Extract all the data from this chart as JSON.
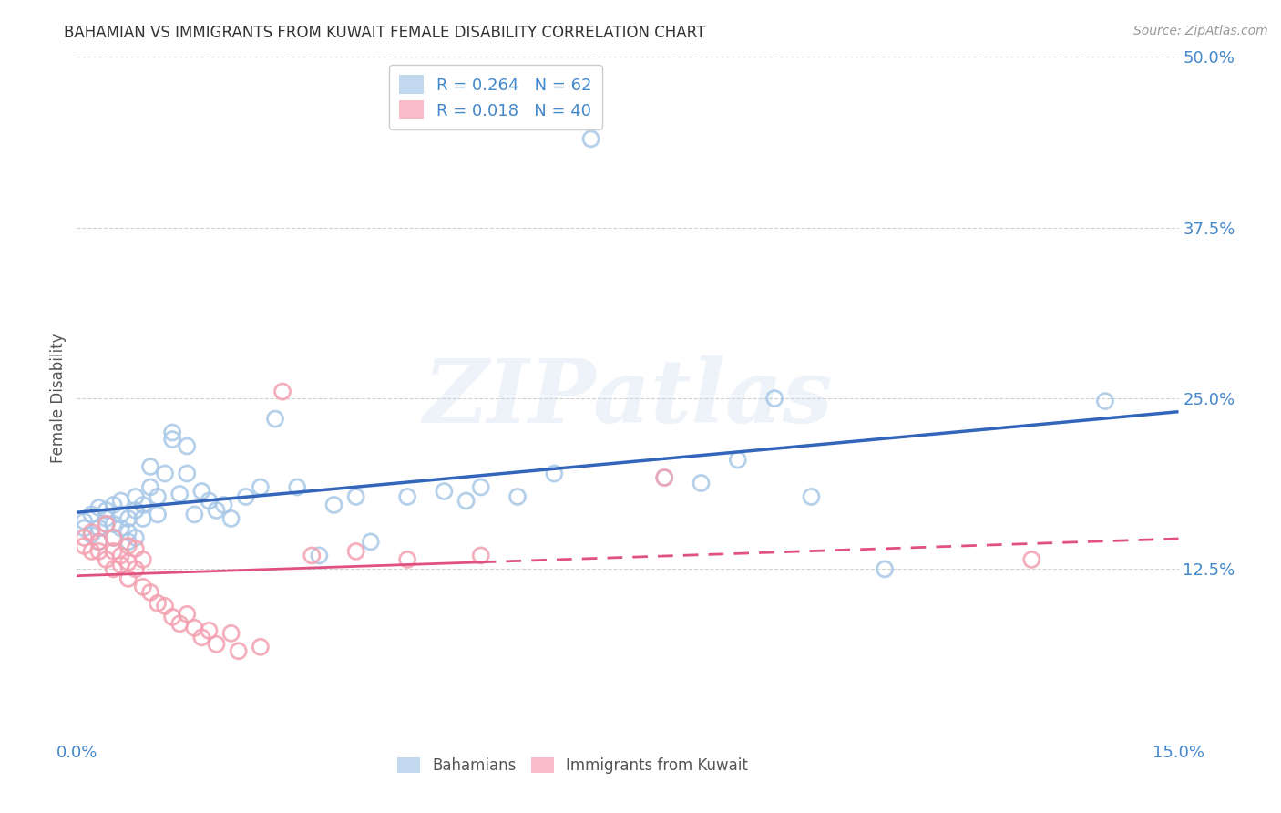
{
  "title": "BAHAMIAN VS IMMIGRANTS FROM KUWAIT FEMALE DISABILITY CORRELATION CHART",
  "source": "Source: ZipAtlas.com",
  "ylabel": "Female Disability",
  "xlim": [
    0.0,
    0.15
  ],
  "ylim": [
    0.0,
    0.5
  ],
  "yticks": [
    0.0,
    0.125,
    0.25,
    0.375,
    0.5
  ],
  "ytick_labels": [
    "",
    "12.5%",
    "25.0%",
    "37.5%",
    "50.0%"
  ],
  "xticks": [
    0.0,
    0.025,
    0.05,
    0.075,
    0.1,
    0.125,
    0.15
  ],
  "xtick_labels": [
    "0.0%",
    "",
    "",
    "",
    "",
    "",
    "15.0%"
  ],
  "blue_color": "#a8c8e8",
  "pink_color": "#f4a0b0",
  "line_blue": "#3366bb",
  "line_pink": "#e05080",
  "tick_color": "#4488cc",
  "grid_color": "#cccccc",
  "watermark": "ZIPatlas",
  "bahamians_x": [
    0.001,
    0.001,
    0.002,
    0.002,
    0.003,
    0.003,
    0.003,
    0.004,
    0.004,
    0.004,
    0.005,
    0.005,
    0.005,
    0.006,
    0.006,
    0.006,
    0.007,
    0.007,
    0.007,
    0.008,
    0.008,
    0.008,
    0.009,
    0.009,
    0.01,
    0.01,
    0.011,
    0.011,
    0.012,
    0.013,
    0.013,
    0.014,
    0.015,
    0.015,
    0.016,
    0.017,
    0.018,
    0.019,
    0.02,
    0.021,
    0.023,
    0.025,
    0.027,
    0.03,
    0.033,
    0.035,
    0.038,
    0.04,
    0.045,
    0.05,
    0.053,
    0.055,
    0.06,
    0.065,
    0.07,
    0.08,
    0.085,
    0.09,
    0.095,
    0.1,
    0.11,
    0.14
  ],
  "bahamians_y": [
    0.16,
    0.155,
    0.165,
    0.15,
    0.155,
    0.17,
    0.145,
    0.158,
    0.168,
    0.162,
    0.158,
    0.172,
    0.148,
    0.165,
    0.155,
    0.175,
    0.162,
    0.152,
    0.145,
    0.178,
    0.168,
    0.148,
    0.172,
    0.162,
    0.2,
    0.185,
    0.178,
    0.165,
    0.195,
    0.22,
    0.225,
    0.18,
    0.195,
    0.215,
    0.165,
    0.182,
    0.175,
    0.168,
    0.172,
    0.162,
    0.178,
    0.185,
    0.235,
    0.185,
    0.135,
    0.172,
    0.178,
    0.145,
    0.178,
    0.182,
    0.175,
    0.185,
    0.178,
    0.195,
    0.44,
    0.192,
    0.188,
    0.205,
    0.25,
    0.178,
    0.125,
    0.248
  ],
  "kuwait_x": [
    0.001,
    0.001,
    0.002,
    0.002,
    0.003,
    0.003,
    0.004,
    0.004,
    0.005,
    0.005,
    0.005,
    0.006,
    0.006,
    0.007,
    0.007,
    0.007,
    0.008,
    0.008,
    0.009,
    0.009,
    0.01,
    0.011,
    0.012,
    0.013,
    0.014,
    0.015,
    0.016,
    0.017,
    0.018,
    0.019,
    0.021,
    0.022,
    0.025,
    0.028,
    0.032,
    0.038,
    0.045,
    0.055,
    0.08,
    0.13
  ],
  "kuwait_y": [
    0.148,
    0.142,
    0.152,
    0.138,
    0.145,
    0.138,
    0.158,
    0.132,
    0.148,
    0.138,
    0.125,
    0.135,
    0.128,
    0.142,
    0.13,
    0.118,
    0.14,
    0.125,
    0.132,
    0.112,
    0.108,
    0.1,
    0.098,
    0.09,
    0.085,
    0.092,
    0.082,
    0.075,
    0.08,
    0.07,
    0.078,
    0.065,
    0.068,
    0.255,
    0.135,
    0.138,
    0.132,
    0.135,
    0.192,
    0.132
  ]
}
